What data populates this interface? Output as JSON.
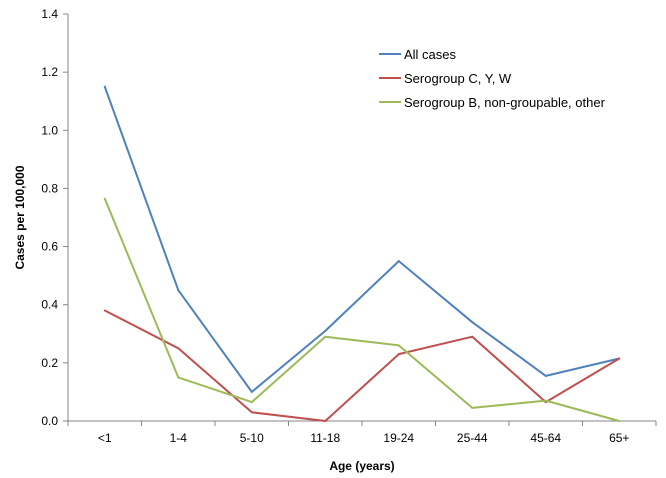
{
  "chart_data": {
    "type": "line",
    "title": "",
    "xlabel": "Age (years)",
    "ylabel": "Cases per 100,000",
    "categories": [
      "<1",
      "1-4",
      "5-10",
      "11-18",
      "19-24",
      "25-44",
      "45-64",
      "65+"
    ],
    "ylim": [
      0,
      1.4
    ],
    "yticks": [
      "0.0",
      "0.2",
      "0.4",
      "0.6",
      "0.8",
      "1.0",
      "1.2",
      "1.4"
    ],
    "grid": false,
    "legend_position": "top-right",
    "series": [
      {
        "name": "All cases",
        "color": "#4f81bd",
        "values": [
          1.15,
          0.45,
          0.1,
          0.31,
          0.55,
          0.34,
          0.155,
          0.215
        ]
      },
      {
        "name": "Serogroup C, Y, W",
        "color": "#c0504d",
        "values": [
          0.38,
          0.25,
          0.03,
          0.0,
          0.23,
          0.29,
          0.065,
          0.215
        ]
      },
      {
        "name": "Serogroup B, non-groupable, other",
        "color": "#9bbb59",
        "values": [
          0.765,
          0.15,
          0.065,
          0.29,
          0.26,
          0.045,
          0.07,
          0.0
        ]
      }
    ]
  }
}
